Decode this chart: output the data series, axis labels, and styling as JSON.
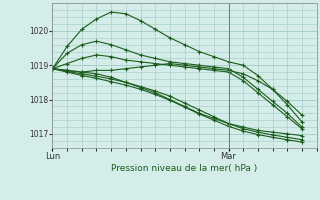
{
  "xlabel": "Pression niveau de la mer( hPa )",
  "background_color": "#d4ede9",
  "grid_color": "#a0c8c4",
  "line_color": "#1a5c1a",
  "marker_color": "#1a5c1a",
  "vline_color": "#777777",
  "ylim": [
    1016.6,
    1020.8
  ],
  "yticks": [
    1017,
    1018,
    1019,
    1020
  ],
  "xlim_hours": [
    0,
    54
  ],
  "lun_x": 0,
  "mar_x": 36,
  "vline_x": 36,
  "series": [
    {
      "x": [
        0,
        3,
        6,
        9,
        12,
        15,
        18,
        21,
        24,
        27,
        30,
        33,
        36,
        39,
        42,
        45,
        48,
        51
      ],
      "y": [
        1018.9,
        1018.85,
        1018.8,
        1018.85,
        1018.85,
        1018.9,
        1018.95,
        1019.0,
        1019.05,
        1019.0,
        1018.95,
        1018.9,
        1018.85,
        1018.75,
        1018.55,
        1018.3,
        1017.95,
        1017.55
      ]
    },
    {
      "x": [
        0,
        3,
        6,
        9,
        12,
        15,
        18,
        21,
        24,
        27,
        30,
        33,
        36,
        39,
        42,
        45,
        48,
        51
      ],
      "y": [
        1018.9,
        1019.05,
        1019.2,
        1019.3,
        1019.25,
        1019.15,
        1019.1,
        1019.05,
        1019.0,
        1018.95,
        1018.9,
        1018.85,
        1018.8,
        1018.55,
        1018.2,
        1017.85,
        1017.5,
        1017.15
      ]
    },
    {
      "x": [
        0,
        3,
        6,
        9,
        12,
        15,
        18,
        21,
        24,
        27,
        30,
        33,
        36,
        39,
        42,
        45,
        48,
        51
      ],
      "y": [
        1018.9,
        1019.35,
        1019.6,
        1019.7,
        1019.6,
        1019.45,
        1019.3,
        1019.2,
        1019.1,
        1019.05,
        1019.0,
        1018.95,
        1018.9,
        1018.65,
        1018.3,
        1017.95,
        1017.6,
        1017.2
      ]
    },
    {
      "x": [
        0,
        3,
        6,
        9,
        12,
        15,
        18,
        21,
        24,
        27,
        30,
        33,
        36,
        39,
        42,
        45,
        48,
        51
      ],
      "y": [
        1018.9,
        1019.55,
        1020.05,
        1020.35,
        1020.55,
        1020.5,
        1020.3,
        1020.05,
        1019.8,
        1019.6,
        1019.4,
        1019.25,
        1019.1,
        1019.0,
        1018.7,
        1018.3,
        1017.85,
        1017.35
      ]
    },
    {
      "x": [
        0,
        3,
        6,
        9,
        12,
        15,
        18,
        21,
        24,
        27,
        30,
        33,
        36,
        39,
        42,
        45,
        48,
        51
      ],
      "y": [
        1018.9,
        1018.85,
        1018.8,
        1018.75,
        1018.65,
        1018.5,
        1018.35,
        1018.2,
        1018.0,
        1017.8,
        1017.6,
        1017.45,
        1017.3,
        1017.2,
        1017.1,
        1017.05,
        1017.0,
        1016.95
      ]
    },
    {
      "x": [
        0,
        3,
        6,
        9,
        12,
        15,
        18,
        21,
        24,
        27,
        30,
        33,
        36,
        39,
        42,
        45,
        48,
        51
      ],
      "y": [
        1018.9,
        1018.82,
        1018.75,
        1018.68,
        1018.6,
        1018.5,
        1018.38,
        1018.25,
        1018.1,
        1017.9,
        1017.7,
        1017.5,
        1017.3,
        1017.15,
        1017.05,
        1016.97,
        1016.9,
        1016.83
      ]
    },
    {
      "x": [
        0,
        3,
        6,
        9,
        12,
        15,
        18,
        21,
        24,
        27,
        30,
        33,
        36,
        39,
        42,
        45,
        48,
        51
      ],
      "y": [
        1018.9,
        1018.8,
        1018.7,
        1018.62,
        1018.52,
        1018.42,
        1018.3,
        1018.15,
        1017.98,
        1017.78,
        1017.58,
        1017.4,
        1017.22,
        1017.08,
        1016.98,
        1016.9,
        1016.83,
        1016.76
      ]
    }
  ]
}
